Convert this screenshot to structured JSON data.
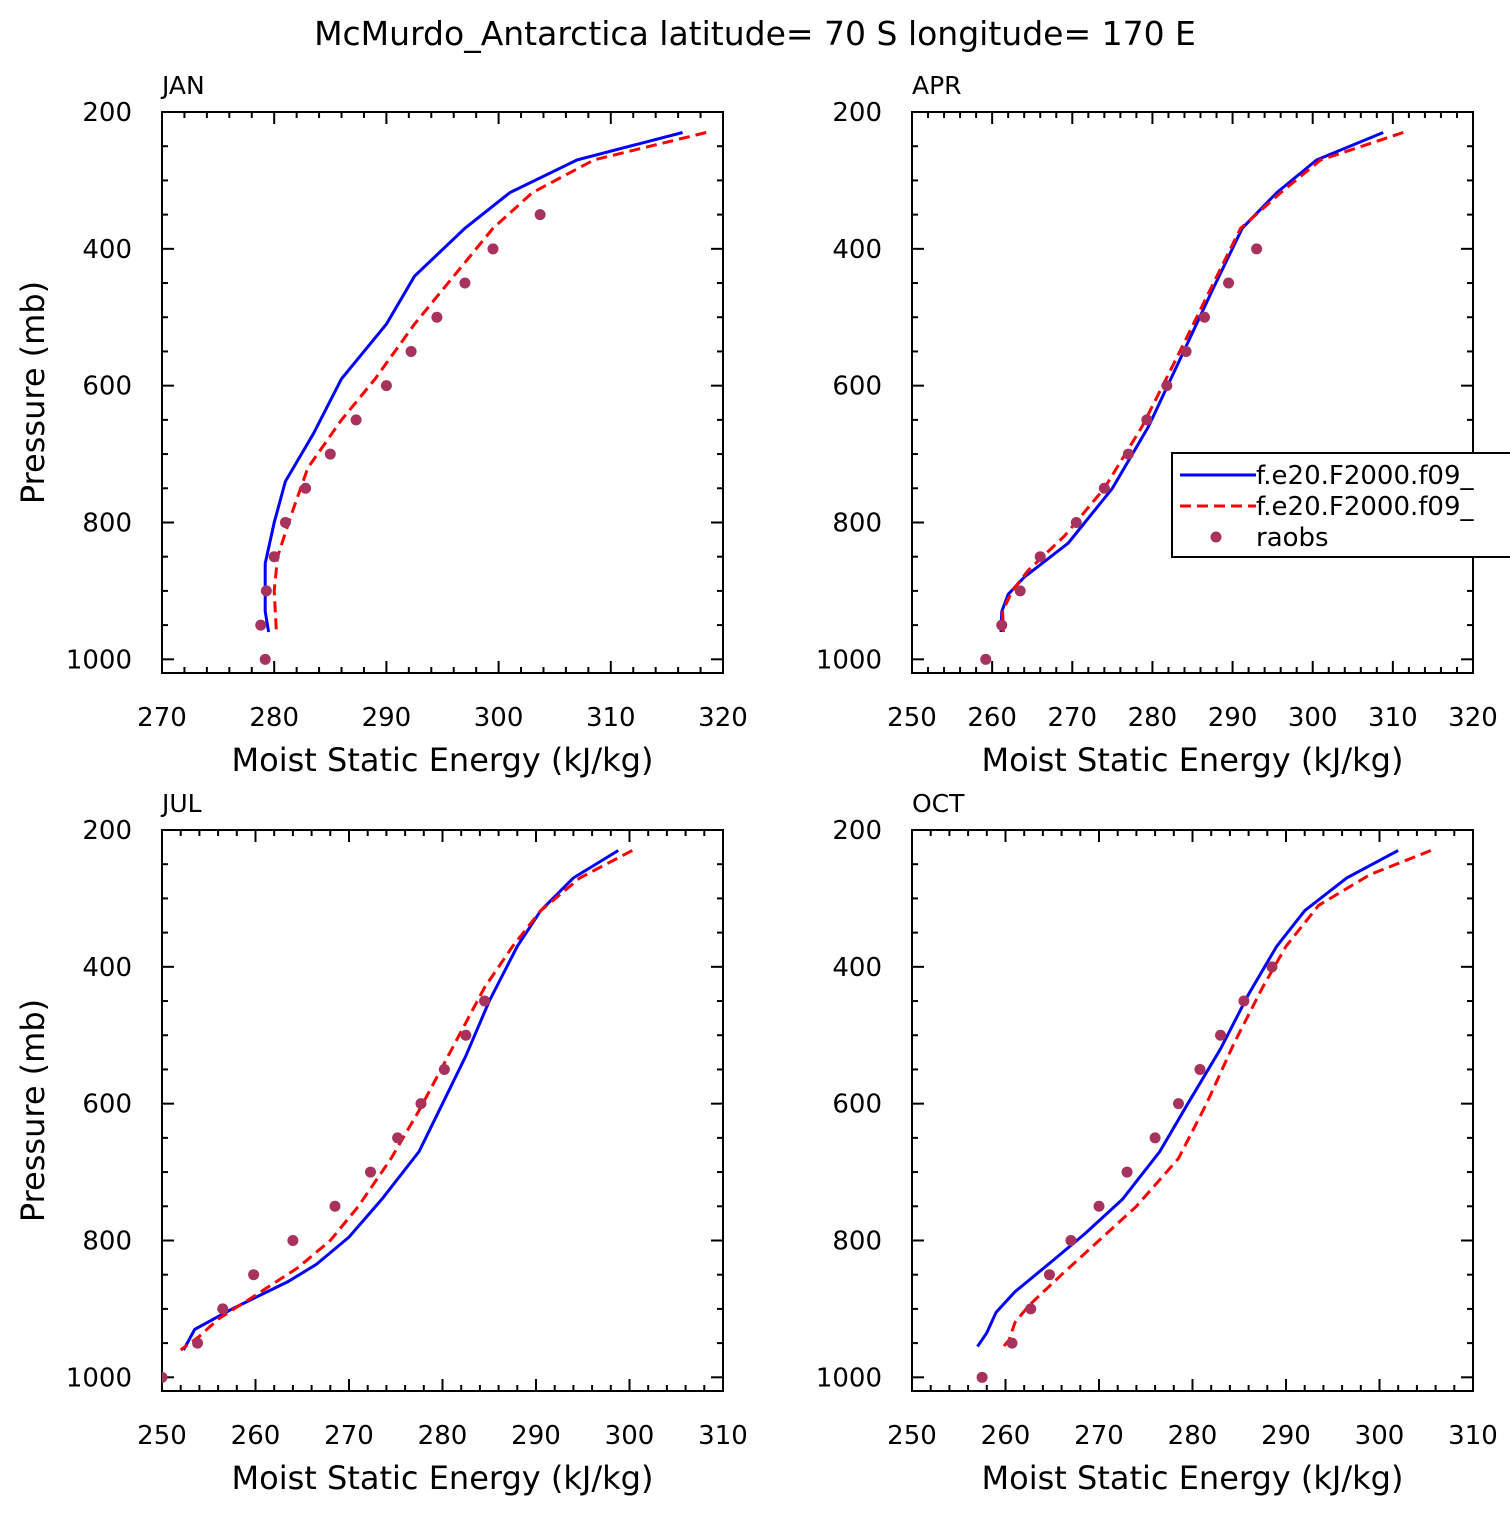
{
  "title": "McMurdo_Antarctica  latitude= 70 S longitude= 170 E",
  "legend": {
    "entries": [
      {
        "label": "f.e20.F2000.f09_",
        "color": "#0000ff",
        "style": "solid"
      },
      {
        "label": "f.e20.F2000.f09_",
        "color": "#ff0000",
        "style": "dashed"
      },
      {
        "label": "raobs",
        "color": "#a8325e",
        "style": "marker"
      }
    ]
  },
  "chart_data": [
    {
      "type": "line",
      "panel": "JAN",
      "xlabel": "Moist Static Energy (kJ/kg)",
      "ylabel": "Pressure (mb)",
      "xlim": [
        270,
        320
      ],
      "ylim": [
        200,
        1020
      ],
      "y_inverted": true,
      "xticks": [
        270,
        280,
        290,
        300,
        310,
        320
      ],
      "yticks": [
        200,
        400,
        600,
        800,
        1000
      ],
      "series": [
        {
          "legend_index": 0,
          "color": "#0000ff",
          "style": "solid",
          "points": [
            [
              316.4,
              230
            ],
            [
              307,
              270
            ],
            [
              301,
              318
            ],
            [
              297,
              370
            ],
            [
              292.5,
              440
            ],
            [
              290,
              510
            ],
            [
              286,
              590
            ],
            [
              283.5,
              670
            ],
            [
              281,
              740
            ],
            [
              280,
              800
            ],
            [
              279.2,
              860
            ],
            [
              279.2,
              930
            ],
            [
              279.5,
              960
            ]
          ]
        },
        {
          "legend_index": 1,
          "color": "#ff0000",
          "style": "dashed",
          "points": [
            [
              318.5,
              230
            ],
            [
              308.5,
              270
            ],
            [
              303,
              318
            ],
            [
              299.5,
              370
            ],
            [
              296,
              440
            ],
            [
              292.5,
              510
            ],
            [
              289,
              590
            ],
            [
              286,
              650
            ],
            [
              283,
              720
            ],
            [
              281.5,
              790
            ],
            [
              280.3,
              850
            ],
            [
              280,
              900
            ],
            [
              280.2,
              960
            ]
          ]
        },
        {
          "legend_index": 2,
          "color": "#a8325e",
          "style": "marker",
          "points": [
            [
              303.7,
              350
            ],
            [
              299.5,
              400
            ],
            [
              297,
              450
            ],
            [
              294.5,
              500
            ],
            [
              292.2,
              550
            ],
            [
              290,
              600
            ],
            [
              287.3,
              650
            ],
            [
              285,
              700
            ],
            [
              282.8,
              750
            ],
            [
              281,
              800
            ],
            [
              280,
              850
            ],
            [
              279.3,
              900
            ],
            [
              278.8,
              950
            ],
            [
              279.2,
              1000
            ]
          ]
        }
      ]
    },
    {
      "type": "line",
      "panel": "APR",
      "xlabel": "Moist Static Energy (kJ/kg)",
      "ylabel": "",
      "xlim": [
        250,
        320
      ],
      "ylim": [
        200,
        1020
      ],
      "y_inverted": true,
      "xticks": [
        250,
        260,
        270,
        280,
        290,
        300,
        310,
        320
      ],
      "yticks": [
        200,
        400,
        600,
        800,
        1000
      ],
      "series": [
        {
          "legend_index": 0,
          "color": "#0000ff",
          "style": "solid",
          "points": [
            [
              308.8,
              230
            ],
            [
              300.5,
              270
            ],
            [
              295.5,
              318
            ],
            [
              291.2,
              370
            ],
            [
              287.5,
              460
            ],
            [
              283.5,
              560
            ],
            [
              279.5,
              660
            ],
            [
              275,
              750
            ],
            [
              269.5,
              830
            ],
            [
              264,
              880
            ],
            [
              262,
              905
            ],
            [
              261.2,
              930
            ],
            [
              261.1,
              960
            ]
          ]
        },
        {
          "legend_index": 1,
          "color": "#ff0000",
          "style": "dashed",
          "points": [
            [
              311.3,
              230
            ],
            [
              301,
              270
            ],
            [
              296,
              318
            ],
            [
              291,
              370
            ],
            [
              287.2,
              460
            ],
            [
              283,
              560
            ],
            [
              278.7,
              660
            ],
            [
              274,
              750
            ],
            [
              269,
              820
            ],
            [
              264.5,
              870
            ],
            [
              262.5,
              900
            ],
            [
              261.3,
              930
            ],
            [
              261.4,
              960
            ]
          ]
        },
        {
          "legend_index": 2,
          "color": "#a8325e",
          "style": "marker",
          "points": [
            [
              293,
              400
            ],
            [
              289.5,
              450
            ],
            [
              286.5,
              500
            ],
            [
              284.2,
              550
            ],
            [
              281.8,
              600
            ],
            [
              279.3,
              650
            ],
            [
              277,
              700
            ],
            [
              274,
              750
            ],
            [
              270.5,
              800
            ],
            [
              266,
              850
            ],
            [
              263.5,
              900
            ],
            [
              261.2,
              950
            ],
            [
              259.2,
              1000
            ]
          ]
        }
      ]
    },
    {
      "type": "line",
      "panel": "JUL",
      "xlabel": "Moist Static Energy (kJ/kg)",
      "ylabel": "Pressure (mb)",
      "xlim": [
        250,
        310
      ],
      "ylim": [
        200,
        1020
      ],
      "y_inverted": true,
      "xticks": [
        250,
        260,
        270,
        280,
        290,
        300,
        310
      ],
      "yticks": [
        200,
        400,
        600,
        800,
        1000
      ],
      "series": [
        {
          "legend_index": 0,
          "color": "#0000ff",
          "style": "solid",
          "points": [
            [
              298.8,
              230
            ],
            [
              294,
              270
            ],
            [
              290.5,
              318
            ],
            [
              288,
              370
            ],
            [
              285,
              450
            ],
            [
              282.5,
              530
            ],
            [
              280,
              600
            ],
            [
              277.5,
              670
            ],
            [
              273.5,
              740
            ],
            [
              270,
              795
            ],
            [
              266.5,
              835
            ],
            [
              263.5,
              860
            ],
            [
              257.5,
              900
            ],
            [
              253.5,
              930
            ],
            [
              252.3,
              960
            ]
          ]
        },
        {
          "legend_index": 1,
          "color": "#ff0000",
          "style": "dashed",
          "points": [
            [
              300.3,
              230
            ],
            [
              294.7,
              270
            ],
            [
              290.5,
              318
            ],
            [
              287.5,
              370
            ],
            [
              284.5,
              430
            ],
            [
              281,
              520
            ],
            [
              277.5,
              610
            ],
            [
              274.5,
              680
            ],
            [
              271,
              750
            ],
            [
              268,
              800
            ],
            [
              264.5,
              840
            ],
            [
              260,
              880
            ],
            [
              256,
              915
            ],
            [
              254,
              940
            ],
            [
              252,
              960
            ]
          ]
        },
        {
          "legend_index": 2,
          "color": "#a8325e",
          "style": "marker",
          "points": [
            [
              284.5,
              450
            ],
            [
              282.5,
              500
            ],
            [
              280.2,
              550
            ],
            [
              277.7,
              600
            ],
            [
              275.2,
              650
            ],
            [
              272.3,
              700
            ],
            [
              268.5,
              750
            ],
            [
              264,
              800
            ],
            [
              259.8,
              850
            ],
            [
              256.5,
              900
            ],
            [
              253.8,
              950
            ],
            [
              250,
              1000
            ]
          ]
        }
      ]
    },
    {
      "type": "line",
      "panel": "OCT",
      "xlabel": "Moist Static Energy (kJ/kg)",
      "ylabel": "",
      "xlim": [
        250,
        310
      ],
      "ylim": [
        200,
        1020
      ],
      "y_inverted": true,
      "xticks": [
        250,
        260,
        270,
        280,
        290,
        300,
        310
      ],
      "yticks": [
        200,
        400,
        600,
        800,
        1000
      ],
      "series": [
        {
          "legend_index": 0,
          "color": "#0000ff",
          "style": "solid",
          "points": [
            [
              302,
              230
            ],
            [
              296.5,
              270
            ],
            [
              292,
              318
            ],
            [
              289,
              370
            ],
            [
              286,
              440
            ],
            [
              283,
              520
            ],
            [
              279.5,
              600
            ],
            [
              276.5,
              670
            ],
            [
              272.5,
              740
            ],
            [
              268.5,
              790
            ],
            [
              265,
              830
            ],
            [
              261,
              875
            ],
            [
              259,
              905
            ],
            [
              258,
              935
            ],
            [
              257,
              955
            ]
          ]
        },
        {
          "legend_index": 1,
          "color": "#ff0000",
          "style": "dashed",
          "points": [
            [
              305.5,
              230
            ],
            [
              299,
              265
            ],
            [
              293.5,
              310
            ],
            [
              290,
              370
            ],
            [
              287.5,
              430
            ],
            [
              284.5,
              510
            ],
            [
              281.5,
              600
            ],
            [
              278.5,
              680
            ],
            [
              274,
              750
            ],
            [
              270,
              800
            ],
            [
              266,
              850
            ],
            [
              262.5,
              895
            ],
            [
              261,
              920
            ],
            [
              260.4,
              945
            ],
            [
              259.5,
              960
            ]
          ]
        },
        {
          "legend_index": 2,
          "color": "#a8325e",
          "style": "marker",
          "points": [
            [
              288.5,
              400
            ],
            [
              285.5,
              450
            ],
            [
              283,
              500
            ],
            [
              280.8,
              550
            ],
            [
              278.5,
              600
            ],
            [
              276,
              650
            ],
            [
              273,
              700
            ],
            [
              270,
              750
            ],
            [
              267,
              800
            ],
            [
              264.7,
              850
            ],
            [
              262.7,
              900
            ],
            [
              260.7,
              950
            ],
            [
              257.5,
              1000
            ]
          ]
        }
      ]
    }
  ]
}
